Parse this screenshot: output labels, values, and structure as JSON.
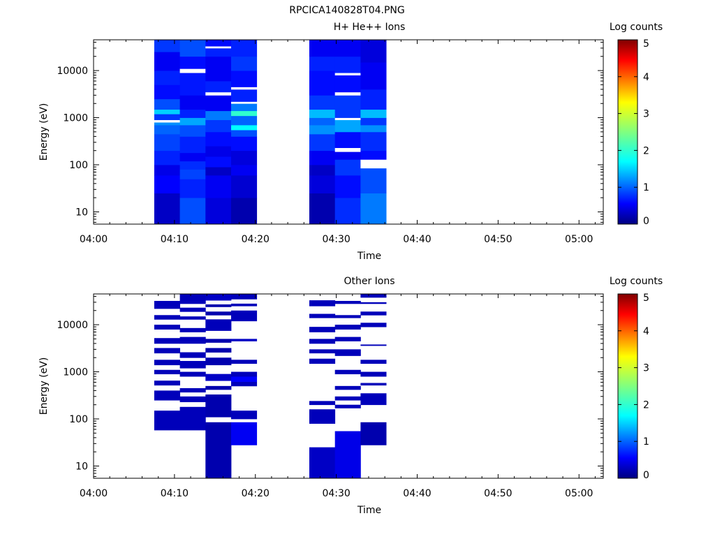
{
  "figure_title": "RPCICA140828T04.PNG",
  "chart_data": [
    {
      "type": "heatmap",
      "title": "H+ He++ Ions",
      "xlabel": "Time",
      "ylabel": "Energy (eV)",
      "yscale": "log",
      "ylim": [
        5.5,
        45000
      ],
      "xlim": [
        "04:00",
        "05:03"
      ],
      "xticks": [
        "04:00",
        "04:10",
        "04:20",
        "04:30",
        "04:40",
        "04:50",
        "05:00"
      ],
      "yticks": [
        "10",
        "100",
        "1000",
        "10000"
      ],
      "colorbar": {
        "label": "Log counts",
        "range": [
          0,
          5
        ],
        "ticks": [
          "0",
          "1",
          "2",
          "3",
          "4",
          "5"
        ]
      },
      "columns": [
        {
          "start": "04:07:30",
          "end": "04:10:40",
          "bands": [
            [
              5.5,
              25,
              0.3
            ],
            [
              25,
              60,
              0.55
            ],
            [
              60,
              100,
              0.45
            ],
            [
              100,
              200,
              0.7
            ],
            [
              200,
              450,
              0.85
            ],
            [
              450,
              700,
              1.0
            ],
            [
              700,
              800,
              1.2
            ],
            [
              800,
              900,
              "white"
            ],
            [
              900,
              1200,
              0.8
            ],
            [
              1200,
              1500,
              1.5
            ],
            [
              1500,
              2500,
              0.9
            ],
            [
              2500,
              5000,
              0.6
            ],
            [
              5000,
              10000,
              0.7
            ],
            [
              10000,
              25000,
              0.5
            ],
            [
              25000,
              45000,
              0.8
            ]
          ]
        },
        {
          "start": "04:10:40",
          "end": "04:13:50",
          "bands": [
            [
              5.5,
              20,
              0.9
            ],
            [
              20,
              50,
              0.7
            ],
            [
              50,
              80,
              0.85
            ],
            [
              80,
              120,
              0.75
            ],
            [
              120,
              180,
              0.5
            ],
            [
              180,
              400,
              0.7
            ],
            [
              400,
              700,
              0.9
            ],
            [
              700,
              1000,
              1.3
            ],
            [
              1000,
              1500,
              0.7
            ],
            [
              1500,
              3000,
              0.5
            ],
            [
              3000,
              9000,
              0.65
            ],
            [
              9000,
              11000,
              "white"
            ],
            [
              11000,
              20000,
              0.6
            ],
            [
              20000,
              45000,
              0.9
            ]
          ]
        },
        {
          "start": "04:13:50",
          "end": "04:17:00",
          "bands": [
            [
              5.5,
              20,
              0.4
            ],
            [
              20,
              60,
              0.5
            ],
            [
              60,
              90,
              0.3
            ],
            [
              90,
              150,
              0.6
            ],
            [
              150,
              250,
              0.45
            ],
            [
              250,
              500,
              0.6
            ],
            [
              500,
              900,
              0.8
            ],
            [
              900,
              1400,
              1.1
            ],
            [
              1400,
              3000,
              0.5
            ],
            [
              3000,
              3500,
              "white"
            ],
            [
              3500,
              6000,
              0.7
            ],
            [
              6000,
              20000,
              0.5
            ],
            [
              20000,
              30000,
              0.7
            ],
            [
              30000,
              33000,
              "white"
            ],
            [
              33000,
              45000,
              0.6
            ]
          ]
        },
        {
          "start": "04:17:00",
          "end": "04:20:10",
          "bands": [
            [
              5.5,
              20,
              0.2
            ],
            [
              20,
              60,
              0.35
            ],
            [
              60,
              100,
              0.5
            ],
            [
              100,
              200,
              0.4
            ],
            [
              200,
              400,
              0.6
            ],
            [
              400,
              550,
              0.9
            ],
            [
              550,
              700,
              1.7
            ],
            [
              700,
              1100,
              1.0
            ],
            [
              1100,
              1400,
              2.0
            ],
            [
              1400,
              2000,
              1.1
            ],
            [
              2000,
              2200,
              "white"
            ],
            [
              2200,
              4000,
              0.7
            ],
            [
              4000,
              4500,
              "white"
            ],
            [
              4500,
              10000,
              0.6
            ],
            [
              10000,
              20000,
              0.8
            ],
            [
              20000,
              45000,
              0.7
            ]
          ]
        },
        {
          "start": "04:26:40",
          "end": "04:29:50",
          "bands": [
            [
              5.5,
              25,
              0.2
            ],
            [
              25,
              60,
              0.4
            ],
            [
              60,
              100,
              0.3
            ],
            [
              100,
              200,
              0.5
            ],
            [
              200,
              450,
              0.8
            ],
            [
              450,
              700,
              1.2
            ],
            [
              700,
              1000,
              1.0
            ],
            [
              1000,
              1500,
              1.4
            ],
            [
              1500,
              3000,
              0.8
            ],
            [
              3000,
              10000,
              0.6
            ],
            [
              10000,
              20000,
              0.7
            ],
            [
              20000,
              45000,
              0.5
            ]
          ]
        },
        {
          "start": "04:29:50",
          "end": "04:33:00",
          "bands": [
            [
              5.5,
              20,
              0.75
            ],
            [
              20,
              60,
              0.6
            ],
            [
              60,
              130,
              0.8
            ],
            [
              130,
              190,
              0.5
            ],
            [
              190,
              230,
              "white"
            ],
            [
              230,
              500,
              0.6
            ],
            [
              500,
              900,
              1.3
            ],
            [
              900,
              1000,
              "white"
            ],
            [
              1000,
              3000,
              0.8
            ],
            [
              3000,
              3500,
              "white"
            ],
            [
              3500,
              8000,
              0.6
            ],
            [
              8000,
              9000,
              "white"
            ],
            [
              9000,
              20000,
              0.7
            ],
            [
              20000,
              45000,
              0.5
            ]
          ]
        },
        {
          "start": "04:33:00",
          "end": "04:36:10",
          "bands": [
            [
              5.5,
              25,
              1.1
            ],
            [
              25,
              85,
              0.9
            ],
            [
              85,
              130,
              "white"
            ],
            [
              130,
              200,
              0.6
            ],
            [
              200,
              500,
              0.75
            ],
            [
              500,
              700,
              1.2
            ],
            [
              700,
              1000,
              0.8
            ],
            [
              1000,
              1500,
              1.4
            ],
            [
              1500,
              4000,
              0.7
            ],
            [
              4000,
              15000,
              0.5
            ],
            [
              15000,
              45000,
              0.4
            ]
          ]
        }
      ]
    },
    {
      "type": "heatmap",
      "title": "Other Ions",
      "xlabel": "Time",
      "ylabel": "Energy (eV)",
      "yscale": "log",
      "ylim": [
        5.5,
        45000
      ],
      "xlim": [
        "04:00",
        "05:03"
      ],
      "xticks": [
        "04:00",
        "04:10",
        "04:20",
        "04:30",
        "04:40",
        "04:50",
        "05:00"
      ],
      "yticks": [
        "10",
        "100",
        "1000",
        "10000"
      ],
      "colorbar": {
        "label": "Log counts",
        "range": [
          0,
          5
        ],
        "ticks": [
          "0",
          "1",
          "2",
          "3",
          "4",
          "5"
        ]
      },
      "columns": [
        {
          "start": "04:07:30",
          "end": "04:10:40",
          "bands": [
            [
              58,
              150,
              0.25
            ],
            [
              250,
              400,
              0.25
            ],
            [
              520,
              650,
              0.25
            ],
            [
              900,
              1100,
              0.25
            ],
            [
              1400,
              1800,
              0.25
            ],
            [
              2500,
              3200,
              0.25
            ],
            [
              4000,
              5200,
              0.25
            ],
            [
              8000,
              10000,
              0.25
            ],
            [
              13000,
              16000,
              0.25
            ],
            [
              22000,
              32000,
              0.25
            ]
          ]
        },
        {
          "start": "04:10:40",
          "end": "04:13:50",
          "bands": [
            [
              58,
              180,
              0.25
            ],
            [
              230,
              300,
              0.25
            ],
            [
              370,
              450,
              0.25
            ],
            [
              800,
              1000,
              0.25
            ],
            [
              1200,
              1700,
              0.25
            ],
            [
              2000,
              2600,
              0.25
            ],
            [
              4000,
              5500,
              0.25
            ],
            [
              7000,
              8500,
              0.25
            ],
            [
              13000,
              15000,
              0.25
            ],
            [
              19000,
              23000,
              0.25
            ],
            [
              28000,
              45000,
              0.25
            ]
          ]
        },
        {
          "start": "04:13:50",
          "end": "04:17:00",
          "bands": [
            [
              5.5,
              85,
              0.2
            ],
            [
              110,
              330,
              0.2
            ],
            [
              420,
              500,
              0.2
            ],
            [
              650,
              900,
              0.3
            ],
            [
              1400,
              2000,
              0.2
            ],
            [
              2600,
              3200,
              0.2
            ],
            [
              4200,
              5000,
              0.2
            ],
            [
              7500,
              13000,
              0.25
            ],
            [
              16000,
              19000,
              0.2
            ],
            [
              24000,
              27000,
              0.2
            ],
            [
              33000,
              45000,
              0.3
            ]
          ]
        },
        {
          "start": "04:17:00",
          "end": "04:20:10",
          "bands": [
            [
              28,
              85,
              0.5
            ],
            [
              100,
              150,
              0.25
            ],
            [
              500,
              620,
              0.25
            ],
            [
              620,
              800,
              0.55
            ],
            [
              800,
              1000,
              0.25
            ],
            [
              1500,
              1800,
              0.25
            ],
            [
              4500,
              5000,
              0.3
            ],
            [
              12000,
              20000,
              0.25
            ],
            [
              25000,
              28000,
              0.25
            ],
            [
              35000,
              45000,
              0.25
            ]
          ]
        },
        {
          "start": "04:26:40",
          "end": "04:29:50",
          "bands": [
            [
              5.5,
              25,
              0.3
            ],
            [
              80,
              160,
              0.25
            ],
            [
              200,
              240,
              0.25
            ],
            [
              1500,
              1900,
              0.25
            ],
            [
              2500,
              3000,
              0.25
            ],
            [
              4000,
              5000,
              0.25
            ],
            [
              7000,
              9000,
              0.25
            ],
            [
              14000,
              17000,
              0.25
            ],
            [
              25000,
              33000,
              0.25
            ]
          ]
        },
        {
          "start": "04:29:50",
          "end": "04:33:00",
          "bands": [
            [
              5.5,
              55,
              0.45
            ],
            [
              170,
              200,
              0.25
            ],
            [
              250,
              300,
              0.25
            ],
            [
              420,
              500,
              0.25
            ],
            [
              900,
              1100,
              0.25
            ],
            [
              2200,
              3000,
              0.25
            ],
            [
              4500,
              5500,
              0.25
            ],
            [
              8000,
              10000,
              0.25
            ],
            [
              14000,
              16000,
              0.25
            ],
            [
              28000,
              32000,
              0.25
            ]
          ]
        },
        {
          "start": "04:33:00",
          "end": "04:36:10",
          "bands": [
            [
              28,
              85,
              0.2
            ],
            [
              200,
              350,
              0.25
            ],
            [
              520,
              580,
              0.25
            ],
            [
              800,
              1000,
              0.25
            ],
            [
              1500,
              1800,
              0.25
            ],
            [
              3600,
              3800,
              0.25
            ],
            [
              9000,
              11000,
              0.25
            ],
            [
              16000,
              19000,
              0.25
            ],
            [
              28000,
              30000,
              0.25
            ],
            [
              38000,
              45000,
              0.25
            ]
          ]
        }
      ]
    }
  ]
}
